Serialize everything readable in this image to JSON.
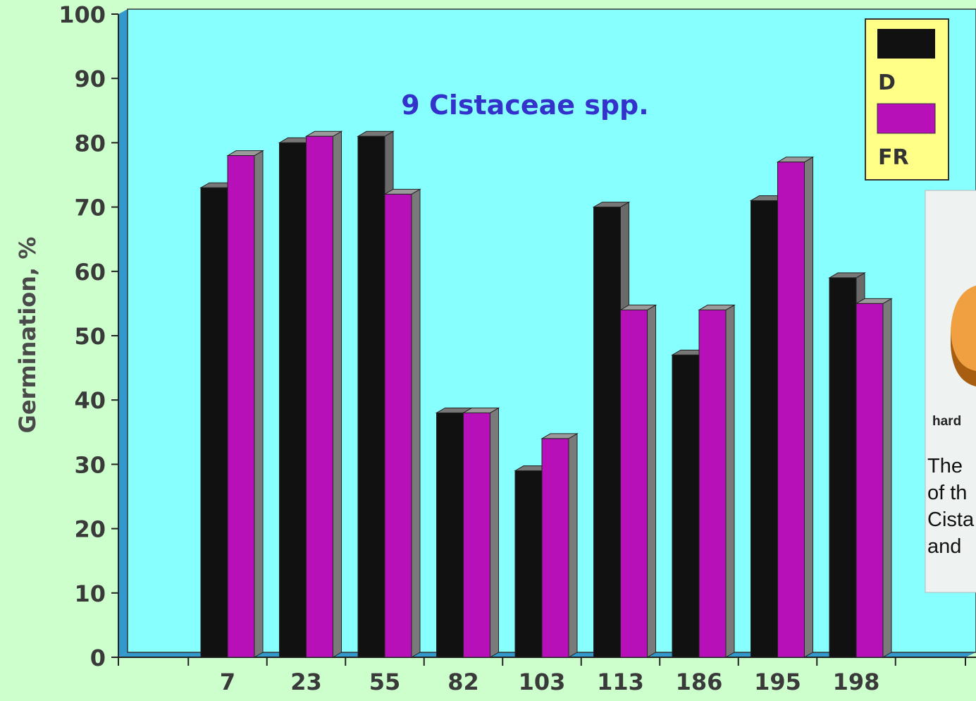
{
  "chart_data": {
    "type": "bar",
    "title": "9 Cistaceae spp.",
    "xlabel": "",
    "ylabel": "Germination, %",
    "ylim": [
      0,
      100
    ],
    "yticks": [
      0,
      10,
      20,
      30,
      40,
      50,
      60,
      70,
      80,
      90,
      100
    ],
    "categories": [
      "7",
      "23",
      "55",
      "82",
      "103",
      "113",
      "186",
      "195",
      "198"
    ],
    "series": [
      {
        "name": "D",
        "color": "#111111",
        "values": [
          73,
          80,
          81,
          38,
          29,
          70,
          47,
          71,
          59
        ]
      },
      {
        "name": "FR",
        "color": "#b810b8",
        "values": [
          78,
          81,
          72,
          38,
          34,
          54,
          54,
          77,
          55
        ]
      }
    ],
    "legend_position": "top-right",
    "grid": false,
    "plot_background": "#88ffff"
  },
  "overlay": {
    "label": "hard",
    "text_lines": [
      "The",
      "of th",
      "Cista",
      "and"
    ]
  }
}
